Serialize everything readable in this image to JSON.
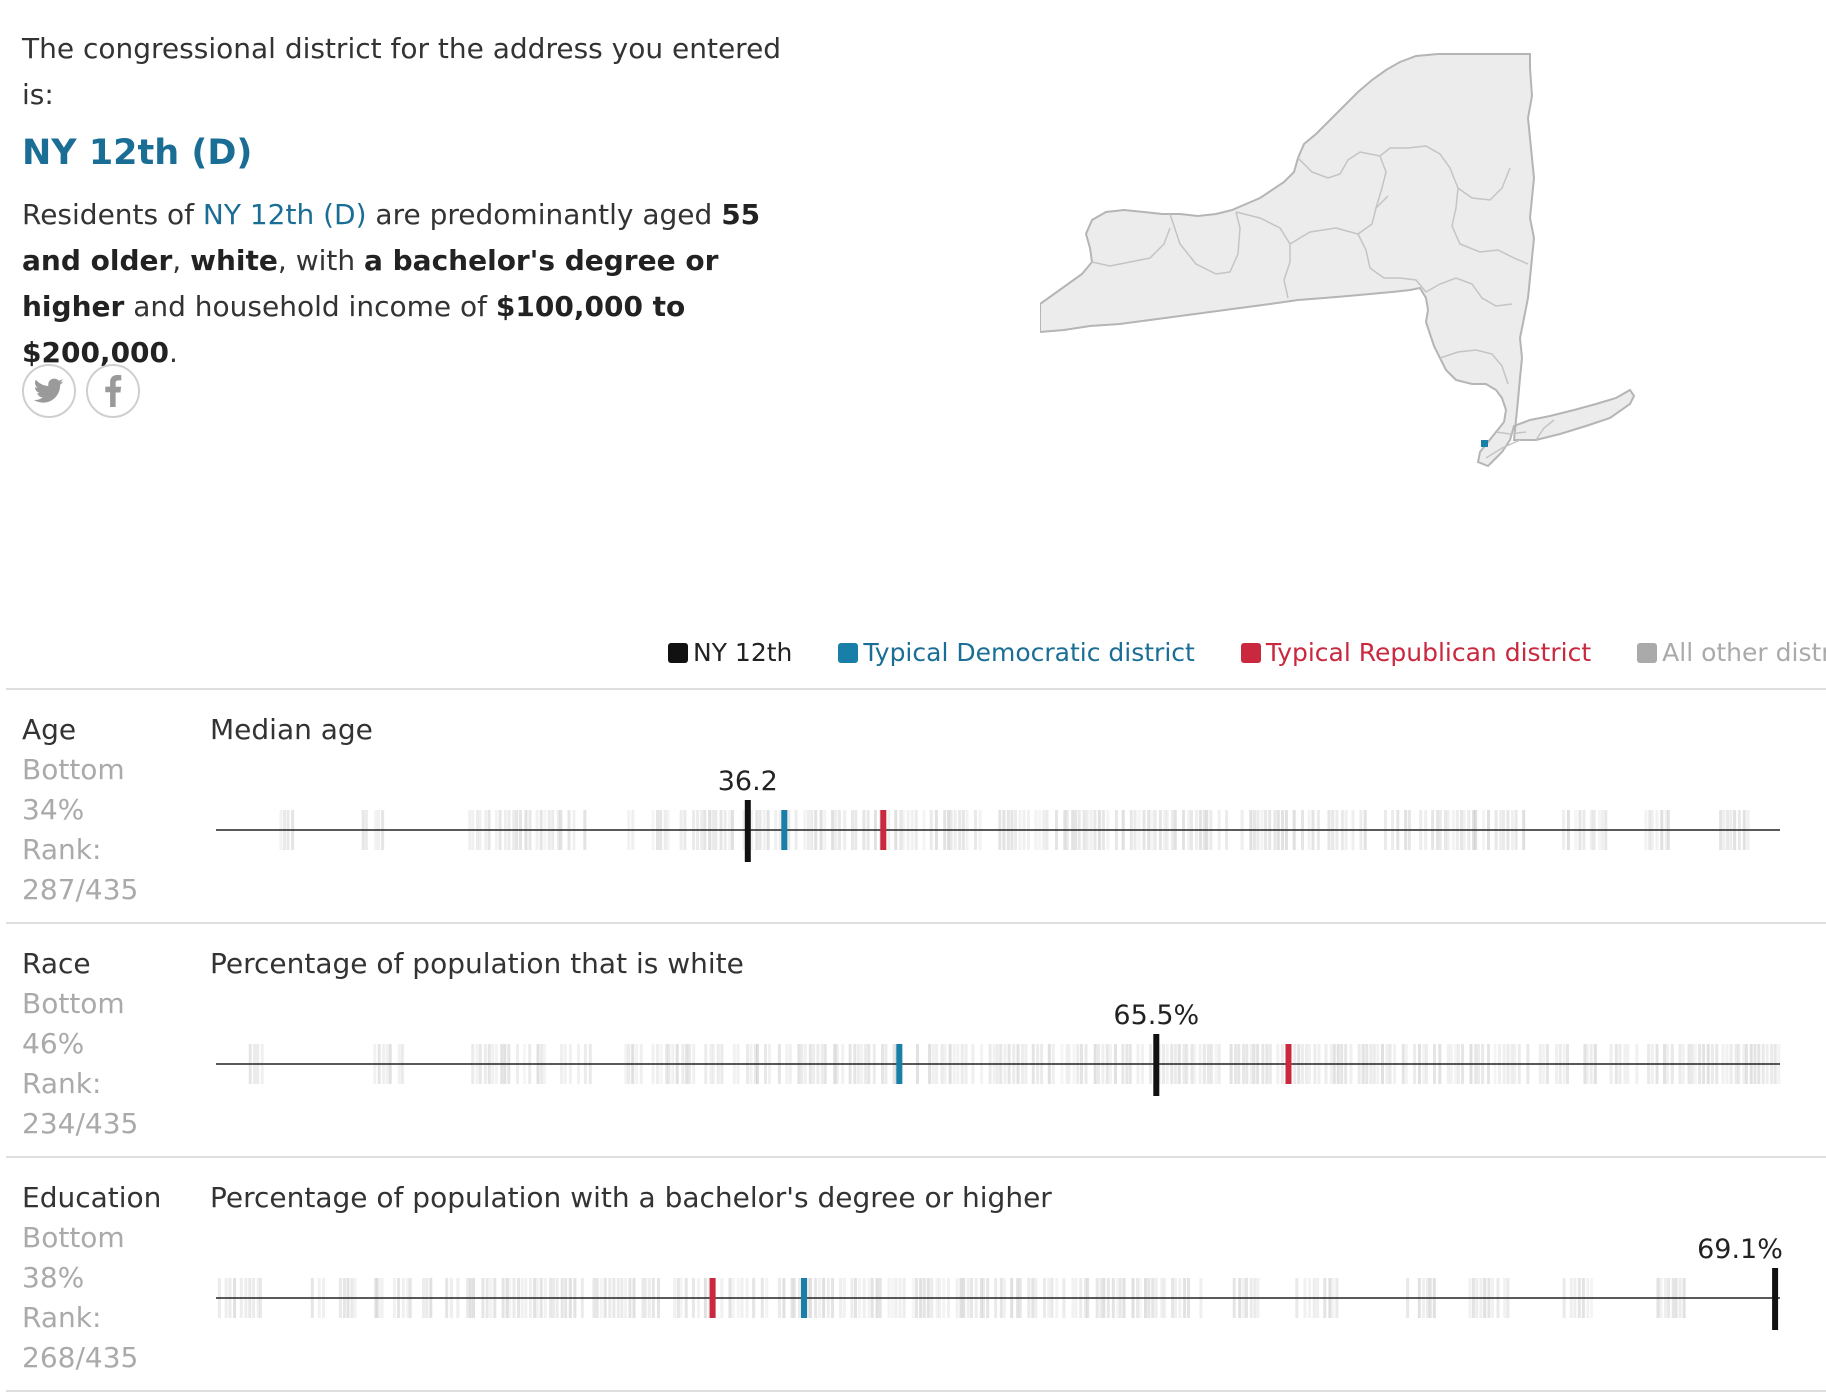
{
  "intro": {
    "lead": "The congressional district for the address you entered is:",
    "district": "NY 12th (D)",
    "summary_pre": "Residents of ",
    "summary_link": "NY 12th (D)",
    "summary_mid1": " are predominantly aged ",
    "summary_age": "55 and older",
    "summary_comma": ", ",
    "summary_race": "white",
    "summary_mid2": ", with ",
    "summary_edu": "a bachelor's degree or higher",
    "summary_mid3": " and household income of ",
    "summary_income": "$100,000 to $200,000",
    "summary_end": "."
  },
  "share": {
    "twitter_icon": "twitter-icon",
    "facebook_icon": "facebook-icon"
  },
  "map": {
    "state": "New York",
    "highlight_color": "#1a7fa8",
    "fill": "#ececec",
    "stroke": "#b5b5b5"
  },
  "legend": [
    {
      "label": "NY 12th",
      "color": "#111111",
      "text_color": "#222222"
    },
    {
      "label": "Typical Democratic district",
      "color": "#1a7fa8",
      "text_color": "#1a6e96"
    },
    {
      "label": "Typical Republican district",
      "color": "#c9283e",
      "text_color": "#c9283e"
    },
    {
      "label": "All other districts",
      "color": "#aaaaaa",
      "text_color": "#aaaaaa"
    }
  ],
  "rows": [
    {
      "category": "Age",
      "position": "Bottom",
      "percent": "34%",
      "rank_label": "Rank:",
      "rank": "287/435",
      "metric": "Median age"
    },
    {
      "category": "Race",
      "position": "Bottom",
      "percent": "46%",
      "rank_label": "Rank:",
      "rank": "234/435",
      "metric": "Percentage of population that is white"
    },
    {
      "category": "Education",
      "position": "Bottom",
      "percent": "38%",
      "rank_label": "Rank:",
      "rank": "268/435",
      "metric": "Percentage of population with a bachelor's degree or higher"
    }
  ],
  "chart_data": [
    {
      "type": "scatter",
      "title": "Median age",
      "district_value": 36.2,
      "district_label": "36.2",
      "domain": [
        26,
        56
      ],
      "typical_democratic": 36.9,
      "typical_republican": 38.8,
      "district_color": "#111111",
      "dem_color": "#1a7fa8",
      "rep_color": "#c9283e",
      "other_color": "#aaaaaa"
    },
    {
      "type": "scatter",
      "title": "Percentage of population that is white",
      "district_value": 65.5,
      "district_label": "65.5%",
      "domain": [
        15,
        99
      ],
      "typical_democratic": 51.7,
      "typical_republican": 72.6,
      "district_color": "#111111",
      "dem_color": "#1a7fa8",
      "rep_color": "#c9283e",
      "other_color": "#aaaaaa"
    },
    {
      "type": "scatter",
      "title": "Percentage of population with a bachelor's degree or higher",
      "district_value": 69.1,
      "district_label": "69.1%",
      "domain": [
        6,
        69.3
      ],
      "typical_democratic": 29.8,
      "typical_republican": 26.1,
      "district_color": "#111111",
      "dem_color": "#1a7fa8",
      "rep_color": "#c9283e",
      "other_color": "#aaaaaa"
    }
  ]
}
